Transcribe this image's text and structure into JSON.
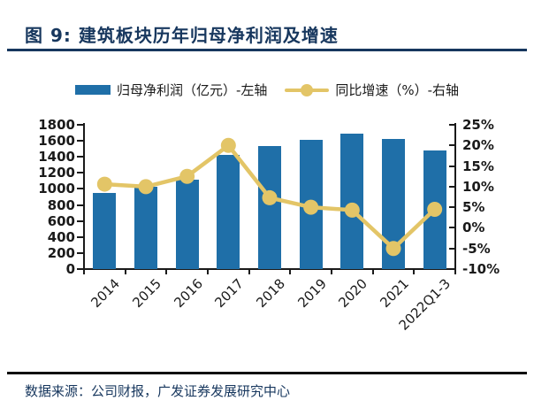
{
  "figure": {
    "title": "图 9: 建筑板块历年归母净利润及增速",
    "source": "数据来源：公司财报，广发证券发展研究中心"
  },
  "colors": {
    "title_navy": "#17375E",
    "bar_blue": "#1F6FA8",
    "line_gold": "#E3C567",
    "axis_black": "#1A1A1A"
  },
  "legend": {
    "items": [
      {
        "marker": "bar-swatch",
        "label": "归母净利润（亿元）-左轴"
      },
      {
        "marker": "line-swatch",
        "label": "同比增速（%）-右轴"
      }
    ]
  },
  "chart_data": {
    "type": "bar+line",
    "categories": [
      "2014",
      "2015",
      "2016",
      "2017",
      "2018",
      "2019",
      "2020",
      "2021",
      "2022Q1-3"
    ],
    "series": [
      {
        "name": "归母净利润（亿元）-左轴",
        "type": "bar",
        "axis": "left",
        "values": [
          950,
          1030,
          1120,
          1430,
          1540,
          1610,
          1690,
          1620,
          1480
        ]
      },
      {
        "name": "同比增速（%）-右轴",
        "type": "line",
        "axis": "right",
        "values": [
          10.6,
          10,
          12.5,
          20,
          7.3,
          5,
          4.3,
          -5,
          4.5
        ]
      }
    ],
    "left_axis": {
      "min": 0,
      "max": 1800,
      "step": 200,
      "tick_labels": [
        "0",
        "200",
        "400",
        "600",
        "800",
        "1000",
        "1200",
        "1400",
        "1600",
        "1800"
      ]
    },
    "right_axis": {
      "min": -10,
      "max": 25,
      "step": 5,
      "tick_labels": [
        "-10%",
        "-5%",
        "0%",
        "5%",
        "10%",
        "15%",
        "20%",
        "25%"
      ]
    },
    "legend_position": "top",
    "grid": false,
    "x_label_rotation_deg": -45
  }
}
